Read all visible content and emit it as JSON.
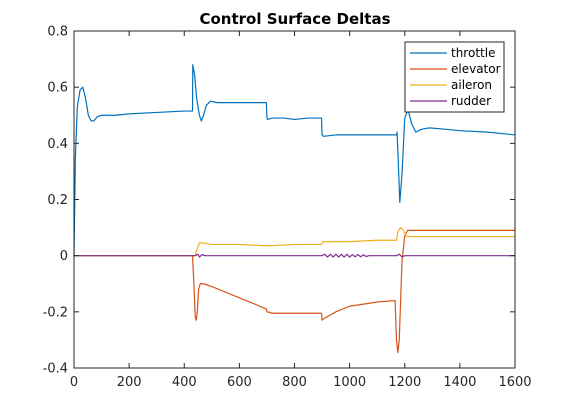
{
  "chart_data": {
    "type": "line",
    "title": "Control Surface Deltas",
    "xlabel": "",
    "ylabel": "",
    "xlim": [
      0,
      1600
    ],
    "ylim": [
      -0.4,
      0.8
    ],
    "xticks": [
      0,
      200,
      400,
      600,
      800,
      1000,
      1200,
      1400,
      1600
    ],
    "xtick_labels": [
      "0",
      "200",
      "400",
      "600",
      "800",
      "1000",
      "1200",
      "1400",
      "1600"
    ],
    "yticks": [
      -0.4,
      -0.2,
      0,
      0.2,
      0.4,
      0.6,
      0.8
    ],
    "ytick_labels": [
      "-0.4",
      "-0.2",
      "0",
      "0.2",
      "0.4",
      "0.6",
      "0.8"
    ],
    "grid": false,
    "legend_position": "top-right",
    "series": [
      {
        "name": "throttle",
        "color": "#0072BD",
        "x": [
          0,
          5,
          12,
          22,
          32,
          42,
          52,
          62,
          72,
          85,
          100,
          150,
          200,
          300,
          400,
          430,
          431,
          438,
          445,
          455,
          462,
          470,
          480,
          495,
          520,
          560,
          600,
          650,
          698,
          700,
          702,
          720,
          760,
          800,
          850,
          898,
          900,
          905,
          950,
          1000,
          1100,
          1160,
          1170,
          1172,
          1176,
          1182,
          1190,
          1200,
          1212,
          1225,
          1240,
          1260,
          1290,
          1350,
          1400,
          1500,
          1600
        ],
        "y": [
          0.0,
          0.35,
          0.53,
          0.59,
          0.6,
          0.56,
          0.5,
          0.48,
          0.48,
          0.495,
          0.5,
          0.5,
          0.505,
          0.51,
          0.515,
          0.515,
          0.68,
          0.64,
          0.56,
          0.5,
          0.48,
          0.5,
          0.535,
          0.55,
          0.545,
          0.545,
          0.545,
          0.545,
          0.545,
          0.49,
          0.485,
          0.49,
          0.49,
          0.485,
          0.49,
          0.49,
          0.43,
          0.425,
          0.43,
          0.43,
          0.43,
          0.43,
          0.43,
          0.44,
          0.35,
          0.19,
          0.29,
          0.49,
          0.52,
          0.47,
          0.44,
          0.45,
          0.455,
          0.45,
          0.445,
          0.44,
          0.43
        ]
      },
      {
        "name": "elevator",
        "color": "#D95319",
        "x": [
          0,
          5,
          50,
          100,
          200,
          300,
          400,
          430,
          435,
          440,
          444,
          448,
          452,
          458,
          470,
          500,
          550,
          600,
          650,
          698,
          700,
          720,
          800,
          898,
          900,
          905,
          950,
          1000,
          1100,
          1165,
          1170,
          1175,
          1180,
          1190,
          1200,
          1210,
          1220,
          1300,
          1400,
          1500,
          1600
        ],
        "y": [
          0.0,
          0.0,
          0.0,
          0.0,
          0.0,
          0.0,
          0.0,
          0.0,
          -0.1,
          -0.22,
          -0.23,
          -0.19,
          -0.12,
          -0.1,
          -0.1,
          -0.11,
          -0.13,
          -0.15,
          -0.17,
          -0.19,
          -0.2,
          -0.205,
          -0.205,
          -0.205,
          -0.23,
          -0.225,
          -0.2,
          -0.18,
          -0.165,
          -0.16,
          -0.3,
          -0.345,
          -0.3,
          -0.02,
          0.07,
          0.09,
          0.09,
          0.09,
          0.09,
          0.09,
          0.09
        ]
      },
      {
        "name": "aileron",
        "color": "#EDB120",
        "x": [
          0,
          5,
          100,
          200,
          300,
          400,
          440,
          445,
          455,
          470,
          500,
          600,
          700,
          800,
          898,
          900,
          905,
          1000,
          1100,
          1170,
          1175,
          1185,
          1195,
          1205,
          1220,
          1300,
          1400,
          1500,
          1600
        ],
        "y": [
          0.0,
          0.0,
          0.0,
          0.0,
          0.0,
          0.0,
          0.0,
          0.02,
          0.045,
          0.045,
          0.04,
          0.04,
          0.035,
          0.04,
          0.04,
          0.045,
          0.05,
          0.05,
          0.055,
          0.055,
          0.085,
          0.1,
          0.09,
          0.07,
          0.068,
          0.068,
          0.068,
          0.068,
          0.068
        ]
      },
      {
        "name": "rudder",
        "color": "#7E2F8E",
        "x": [
          0,
          100,
          200,
          300,
          400,
          440,
          450,
          455,
          465,
          475,
          500,
          600,
          700,
          800,
          900,
          910,
          920,
          930,
          940,
          950,
          960,
          970,
          980,
          990,
          1000,
          1010,
          1020,
          1030,
          1040,
          1050,
          1060,
          1070,
          1100,
          1170,
          1180,
          1190,
          1200,
          1300,
          1400,
          1500,
          1600
        ],
        "y": [
          0.0,
          0.0,
          0.0,
          0.0,
          0.0,
          0.0,
          0.005,
          -0.005,
          0.004,
          0.0,
          0.0,
          0.0,
          0.0,
          0.0,
          0.0,
          0.005,
          -0.005,
          0.005,
          -0.005,
          0.005,
          -0.005,
          0.005,
          -0.005,
          0.005,
          -0.005,
          0.004,
          -0.004,
          0.004,
          -0.004,
          0.003,
          -0.003,
          0.0,
          0.0,
          0.0,
          0.005,
          -0.004,
          0.0,
          0.0,
          0.0,
          0.0,
          0.0
        ]
      }
    ]
  }
}
